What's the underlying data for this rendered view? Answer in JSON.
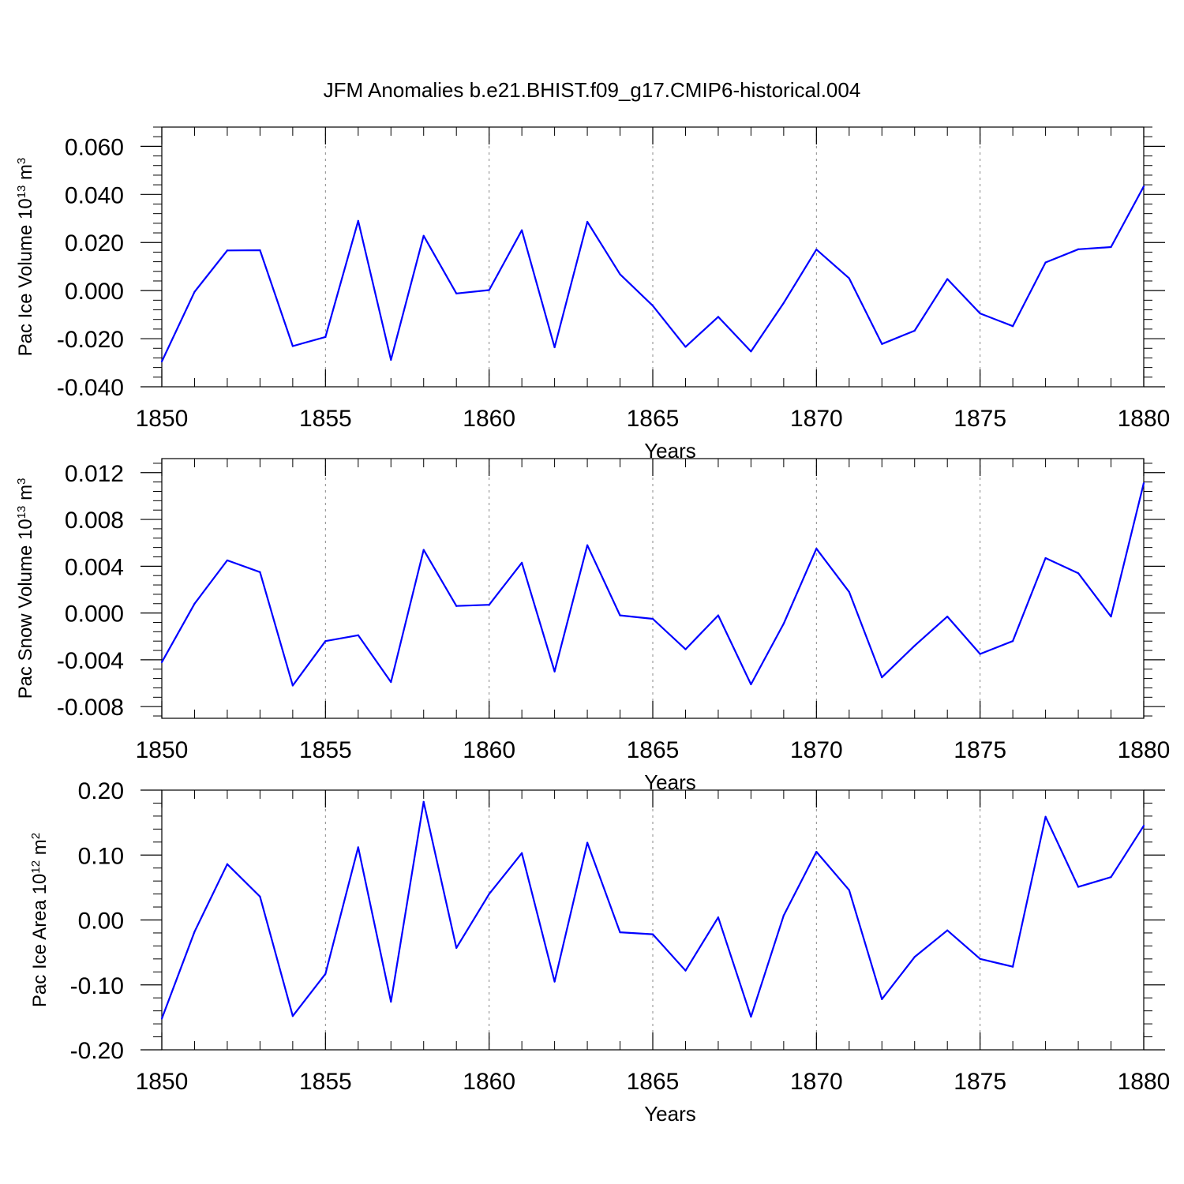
{
  "title": "JFM Anomalies b.e21.BHIST.f09_g17.CMIP6-historical.004",
  "colors": {
    "line": "#0000ff",
    "axis": "#000000",
    "grid": "#888888"
  },
  "chart_data": [
    {
      "type": "line",
      "ylabel": {
        "main": "Pac Ice Volume 10",
        "exp": "13",
        "unit": " m",
        "unit_exp": "3"
      },
      "xlabel": "Years",
      "xlim": [
        1850,
        1880
      ],
      "ylim": [
        -0.04,
        0.068
      ],
      "xticks": [
        1850,
        1855,
        1860,
        1865,
        1870,
        1875,
        1880
      ],
      "yticks": [
        -0.04,
        -0.02,
        0.0,
        0.02,
        0.04,
        0.06
      ],
      "ytick_labels": [
        "-0.040",
        "-0.020",
        "0.000",
        "0.020",
        "0.040",
        "0.060"
      ],
      "x": [
        1850,
        1851,
        1852,
        1853,
        1854,
        1855,
        1856,
        1857,
        1858,
        1859,
        1860,
        1861,
        1862,
        1863,
        1864,
        1865,
        1866,
        1867,
        1868,
        1869,
        1870,
        1871,
        1872,
        1873,
        1874,
        1875,
        1876,
        1877,
        1878,
        1879,
        1880
      ],
      "values": [
        -0.0295,
        -0.0005,
        0.0167,
        0.0168,
        -0.0231,
        -0.0193,
        0.029,
        -0.0288,
        0.0228,
        -0.0012,
        0.0002,
        0.0251,
        -0.0236,
        0.0286,
        0.0068,
        -0.0063,
        -0.0234,
        -0.0109,
        -0.0253,
        -0.0051,
        0.0171,
        0.0051,
        -0.0222,
        -0.0167,
        0.0048,
        -0.0095,
        -0.0148,
        0.0117,
        0.0172,
        0.0181,
        0.0433
      ]
    },
    {
      "type": "line",
      "ylabel": {
        "main": "Pac Snow Volume 10",
        "exp": "13",
        "unit": " m",
        "unit_exp": "3"
      },
      "xlabel": "Years",
      "xlim": [
        1850,
        1880
      ],
      "ylim": [
        -0.009,
        0.0132
      ],
      "xticks": [
        1850,
        1855,
        1860,
        1865,
        1870,
        1875,
        1880
      ],
      "yticks": [
        -0.008,
        -0.004,
        0.0,
        0.004,
        0.008,
        0.012
      ],
      "ytick_labels": [
        "-0.008",
        "-0.004",
        "0.000",
        "0.004",
        "0.008",
        "0.012"
      ],
      "x": [
        1850,
        1851,
        1852,
        1853,
        1854,
        1855,
        1856,
        1857,
        1858,
        1859,
        1860,
        1861,
        1862,
        1863,
        1864,
        1865,
        1866,
        1867,
        1868,
        1869,
        1870,
        1871,
        1872,
        1873,
        1874,
        1875,
        1876,
        1877,
        1878,
        1879,
        1880
      ],
      "values": [
        -0.0042,
        0.0008,
        0.0045,
        0.0035,
        -0.0062,
        -0.0024,
        -0.0019,
        -0.0059,
        0.0054,
        0.0006,
        0.0007,
        0.0043,
        -0.005,
        0.0058,
        -0.0002,
        -0.0005,
        -0.0031,
        -0.0002,
        -0.0061,
        -0.0009,
        0.0055,
        0.0018,
        -0.0055,
        -0.0028,
        -0.0003,
        -0.0035,
        -0.0024,
        0.0047,
        0.0034,
        -0.0003,
        0.0111
      ]
    },
    {
      "type": "line",
      "ylabel": {
        "main": "Pac Ice Area 10",
        "exp": "12",
        "unit": " m",
        "unit_exp": "2"
      },
      "xlabel": "Years",
      "xlim": [
        1850,
        1880
      ],
      "ylim": [
        -0.2,
        0.2
      ],
      "xticks": [
        1850,
        1855,
        1860,
        1865,
        1870,
        1875,
        1880
      ],
      "yticks": [
        -0.2,
        -0.1,
        0.0,
        0.1,
        0.2
      ],
      "ytick_labels": [
        "-0.20",
        "-0.10",
        "0.00",
        "0.10",
        "0.20"
      ],
      "x": [
        1850,
        1851,
        1852,
        1853,
        1854,
        1855,
        1856,
        1857,
        1858,
        1859,
        1860,
        1861,
        1862,
        1863,
        1864,
        1865,
        1866,
        1867,
        1868,
        1869,
        1870,
        1871,
        1872,
        1873,
        1874,
        1875,
        1876,
        1877,
        1878,
        1879,
        1880
      ],
      "values": [
        -0.152,
        -0.018,
        0.086,
        0.036,
        -0.148,
        -0.083,
        0.112,
        -0.126,
        0.182,
        -0.043,
        0.04,
        0.103,
        -0.095,
        0.119,
        -0.019,
        -0.022,
        -0.078,
        0.004,
        -0.149,
        0.007,
        0.105,
        0.046,
        -0.122,
        -0.057,
        -0.016,
        -0.06,
        -0.072,
        0.159,
        0.051,
        0.066,
        0.145
      ]
    }
  ]
}
